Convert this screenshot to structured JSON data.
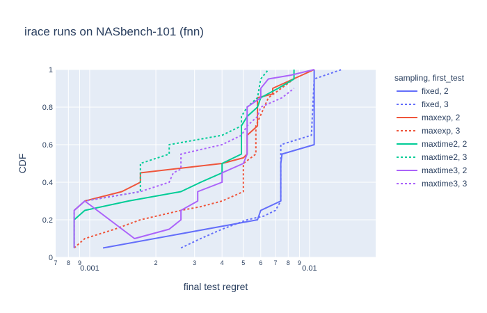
{
  "chart_data": {
    "type": "line",
    "title": "irace runs on NASbench-101 (fnn)",
    "xlabel": "final test regret",
    "ylabel": "CDF",
    "xscale": "log",
    "xlim": [
      0.0007,
      0.02
    ],
    "ylim": [
      0,
      1
    ],
    "grid": true,
    "legend_title": "sampling, first_test",
    "legend_position": "right",
    "y_ticks": [
      {
        "value": 0,
        "label": "0"
      },
      {
        "value": 0.2,
        "label": "0.2"
      },
      {
        "value": 0.4,
        "label": "0.4"
      },
      {
        "value": 0.6,
        "label": "0.6"
      },
      {
        "value": 0.8,
        "label": "0.8"
      },
      {
        "value": 1,
        "label": "1"
      }
    ],
    "x_major_ticks": [
      {
        "value": 0.001,
        "label": "0.001"
      },
      {
        "value": 0.01,
        "label": "0.01"
      }
    ],
    "x_minor_ticks": [
      {
        "value": 0.0007,
        "label": "7"
      },
      {
        "value": 0.0008,
        "label": "8"
      },
      {
        "value": 0.0009,
        "label": "9"
      },
      {
        "value": 0.002,
        "label": "2"
      },
      {
        "value": 0.003,
        "label": "3"
      },
      {
        "value": 0.004,
        "label": "4"
      },
      {
        "value": 0.005,
        "label": "5"
      },
      {
        "value": 0.006,
        "label": "6"
      },
      {
        "value": 0.007,
        "label": "7"
      },
      {
        "value": 0.008,
        "label": "8"
      },
      {
        "value": 0.009,
        "label": "9"
      }
    ],
    "series": [
      {
        "name": "fixed, 2",
        "color": "#636efa",
        "dash": "solid",
        "x": [
          0.00115,
          0.0058,
          0.006,
          0.0074,
          0.0074,
          0.0075,
          0.0105,
          0.0105
        ],
        "y": [
          0.05,
          0.2,
          0.25,
          0.3,
          0.5,
          0.55,
          0.6,
          1.0
        ]
      },
      {
        "name": "fixed, 3",
        "color": "#636efa",
        "dash": "dot",
        "x": [
          0.0026,
          0.0032,
          0.004,
          0.0052,
          0.0062,
          0.007,
          0.0074,
          0.0074,
          0.0102,
          0.0105,
          0.014
        ],
        "y": [
          0.05,
          0.1,
          0.15,
          0.2,
          0.22,
          0.25,
          0.3,
          0.6,
          0.65,
          0.95,
          1.0
        ]
      },
      {
        "name": "maxexp, 2",
        "color": "#ef553b",
        "dash": "solid",
        "x": [
          0.00085,
          0.00095,
          0.0014,
          0.0017,
          0.0017,
          0.004,
          0.005,
          0.0052,
          0.0052,
          0.0058,
          0.0058,
          0.0068,
          0.0068,
          0.0105
        ],
        "y": [
          0.25,
          0.3,
          0.35,
          0.4,
          0.45,
          0.5,
          0.53,
          0.55,
          0.65,
          0.7,
          0.85,
          0.87,
          0.9,
          1.0
        ]
      },
      {
        "name": "maxexp, 3",
        "color": "#ef553b",
        "dash": "dot",
        "x": [
          0.00085,
          0.00095,
          0.0013,
          0.0017,
          0.0026,
          0.0032,
          0.004,
          0.005,
          0.005,
          0.0057,
          0.0057,
          0.0065,
          0.0085
        ],
        "y": [
          0.05,
          0.1,
          0.15,
          0.2,
          0.25,
          0.27,
          0.3,
          0.35,
          0.5,
          0.55,
          0.7,
          0.85,
          0.95
        ]
      },
      {
        "name": "maxtime2, 2",
        "color": "#00cc96",
        "dash": "solid",
        "x": [
          0.00085,
          0.00085,
          0.00095,
          0.0015,
          0.0026,
          0.0032,
          0.004,
          0.004,
          0.0049,
          0.0049,
          0.0052,
          0.0058,
          0.006,
          0.0072,
          0.0085,
          0.0085
        ],
        "y": [
          0.05,
          0.2,
          0.25,
          0.3,
          0.35,
          0.4,
          0.45,
          0.5,
          0.55,
          0.7,
          0.75,
          0.8,
          0.85,
          0.9,
          0.95,
          1.0
        ]
      },
      {
        "name": "maxtime2, 3",
        "color": "#00cc96",
        "dash": "dot",
        "x": [
          0.00085,
          0.00085,
          0.00095,
          0.0017,
          0.0017,
          0.0023,
          0.0023,
          0.004,
          0.0049,
          0.0049,
          0.0052,
          0.0058,
          0.006,
          0.0065
        ],
        "y": [
          0.05,
          0.25,
          0.3,
          0.35,
          0.5,
          0.55,
          0.6,
          0.65,
          0.7,
          0.75,
          0.8,
          0.85,
          0.95,
          1.0
        ]
      },
      {
        "name": "maxtime3, 2",
        "color": "#ab63fa",
        "dash": "solid",
        "x": [
          0.00085,
          0.00085,
          0.00095,
          0.0016,
          0.0023,
          0.0026,
          0.0026,
          0.0031,
          0.0031,
          0.004,
          0.004,
          0.005,
          0.0052,
          0.0052,
          0.006,
          0.006,
          0.0065,
          0.0082,
          0.0105
        ],
        "y": [
          0.05,
          0.25,
          0.3,
          0.1,
          0.15,
          0.2,
          0.25,
          0.3,
          0.35,
          0.4,
          0.45,
          0.5,
          0.55,
          0.8,
          0.85,
          0.9,
          0.95,
          0.97,
          1.0
        ]
      },
      {
        "name": "maxtime3, 3",
        "color": "#ab63fa",
        "dash": "dot",
        "x": [
          0.00085,
          0.00095,
          0.0017,
          0.0023,
          0.0024,
          0.0026,
          0.0026,
          0.004,
          0.0049,
          0.0052,
          0.0058,
          0.006,
          0.0075,
          0.0085
        ],
        "y": [
          0.25,
          0.3,
          0.35,
          0.4,
          0.45,
          0.47,
          0.55,
          0.6,
          0.65,
          0.7,
          0.75,
          0.8,
          0.85,
          0.9
        ]
      }
    ]
  }
}
